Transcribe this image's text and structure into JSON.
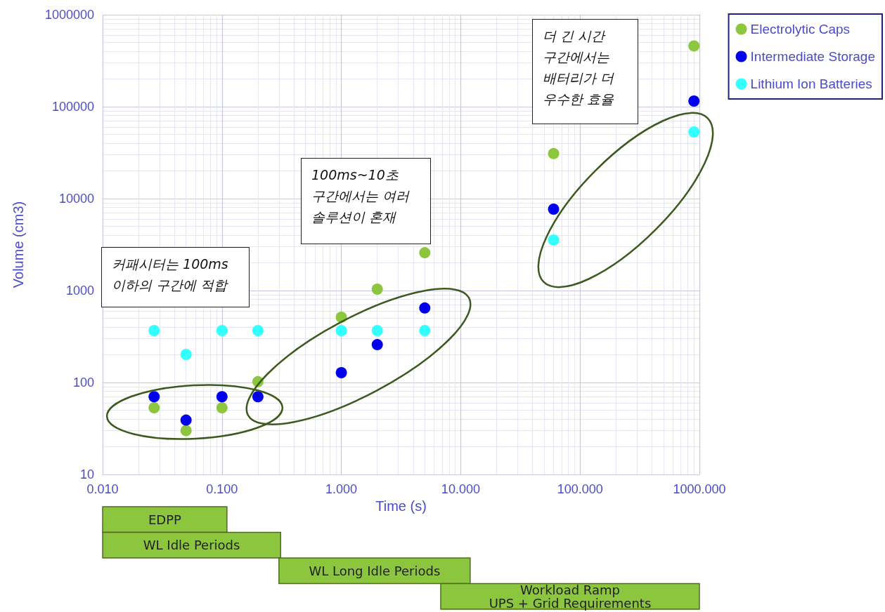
{
  "chart_data": [
    {
      "type": "scatter",
      "xlabel": "Time (s)",
      "ylabel": "Volume (cm3)",
      "log": "xy",
      "grid": true,
      "legend": "top right",
      "marker": "circle",
      "x": [
        0.027,
        0.05,
        0.1,
        0.2,
        1,
        2,
        5,
        60,
        900
      ],
      "series": [
        {
          "name": "Electrolytic Caps",
          "color": "#8cc63f",
          "values": [
            53,
            30,
            53,
            102,
            513,
            1035,
            2580,
            30900,
            458000
          ]
        },
        {
          "name": "Intermediate Storage",
          "color": "#0000ee",
          "values": [
            70,
            39,
            70,
            70,
            128,
            258,
            646,
            7680,
            115000
          ]
        },
        {
          "name": "Lithium Ion Batteries",
          "color": "#33ffff",
          "values": [
            367,
            202,
            367,
            367,
            367,
            367,
            367,
            3550,
            53000
          ]
        }
      ],
      "xlim": [
        0.01,
        1000
      ],
      "xticks": [
        {
          "value": 0.01,
          "label": "0.010"
        },
        {
          "value": 0.1,
          "label": "0.100"
        },
        {
          "value": 1,
          "label": "1.000"
        },
        {
          "value": 10,
          "label": "10.000"
        },
        {
          "value": 100,
          "label": "100.000"
        },
        {
          "value": 1000,
          "label": "1000.000"
        }
      ],
      "ylim": [
        10,
        1000000
      ],
      "yticks": [
        10,
        100,
        1000,
        10000,
        100000,
        1000000
      ],
      "annotations": [
        "커패시터는 100ms\n이하의 구간에 적합",
        "100ms~10초\n구간에서는 여러\n솔루션이 혼재",
        "더 긴 시간\n구간에서는\n배터리가 더\n우수한 효율"
      ]
    },
    {
      "type": "bar",
      "orientation": "horizontal",
      "log": "x",
      "tick_labels": false,
      "color": "#8cc63f",
      "categories": [
        "EDPP",
        "WL Idle Periods",
        "WL Long Idle Periods",
        "Workload Ramp\nUPS + Grid Requirements"
      ],
      "base": [
        0.01,
        0.01,
        0.3,
        6.8
      ],
      "values": [
        0.1,
        0.3,
        11.7,
        993
      ],
      "xlim": [
        0.01,
        1000
      ]
    }
  ]
}
